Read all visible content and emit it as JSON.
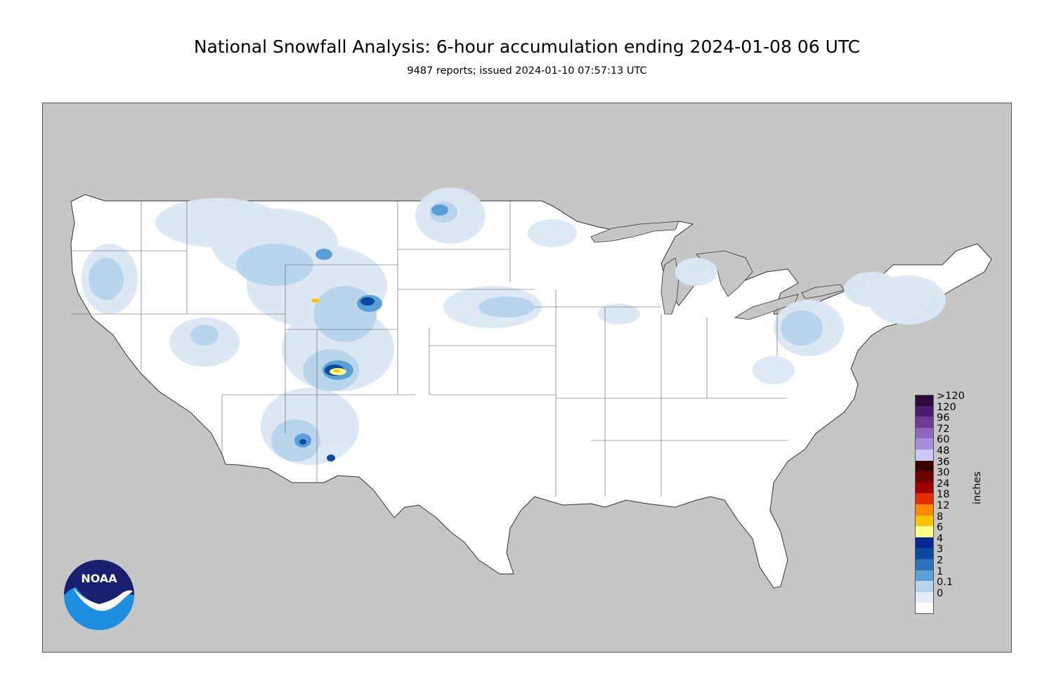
{
  "header": {
    "title": "National Snowfall Analysis: 6-hour accumulation ending 2024-01-08 06 UTC",
    "subtitle": "9487 reports; issued 2024-01-10 07:57:13 UTC"
  },
  "colors": {
    "land_outside": "#c6c6c6",
    "us_land": "#ffffff",
    "borders": "#444444"
  },
  "legend": {
    "units": "inches",
    "levels": [
      {
        "label": ">120",
        "color": "#2c0a3b"
      },
      {
        "label": "120",
        "color": "#4c1d6b"
      },
      {
        "label": "96",
        "color": "#6d3c94"
      },
      {
        "label": "72",
        "color": "#8e66bd"
      },
      {
        "label": "60",
        "color": "#a490d8"
      },
      {
        "label": "48",
        "color": "#cbc8f5"
      },
      {
        "label": "36",
        "color": "#3a0000"
      },
      {
        "label": "30",
        "color": "#6e0000"
      },
      {
        "label": "24",
        "color": "#a00000"
      },
      {
        "label": "18",
        "color": "#e52d00"
      },
      {
        "label": "12",
        "color": "#ff8a00"
      },
      {
        "label": "8",
        "color": "#ffc400"
      },
      {
        "label": "6",
        "color": "#ffff8a"
      },
      {
        "label": "4",
        "color": "#07298f"
      },
      {
        "label": "3",
        "color": "#0c4aa0"
      },
      {
        "label": "2",
        "color": "#2a72b7"
      },
      {
        "label": "1",
        "color": "#5b9fd6"
      },
      {
        "label": "0.1",
        "color": "#b8d5ec"
      },
      {
        "label": "0",
        "color": "#e4edf6"
      }
    ],
    "bottom_color": "#ffffff"
  },
  "logo": {
    "text": "NOAA",
    "colors": {
      "navy": "#1a1e6e",
      "blue": "#1e8fe0",
      "white": "#ffffff"
    }
  },
  "map": {
    "icon": "snowfall-map",
    "snow_colors": [
      "#dbe8f4",
      "#b8d5ec",
      "#5b9fd6",
      "#2a72b7",
      "#0c4aa0",
      "#ffff8a",
      "#ffc400"
    ]
  }
}
